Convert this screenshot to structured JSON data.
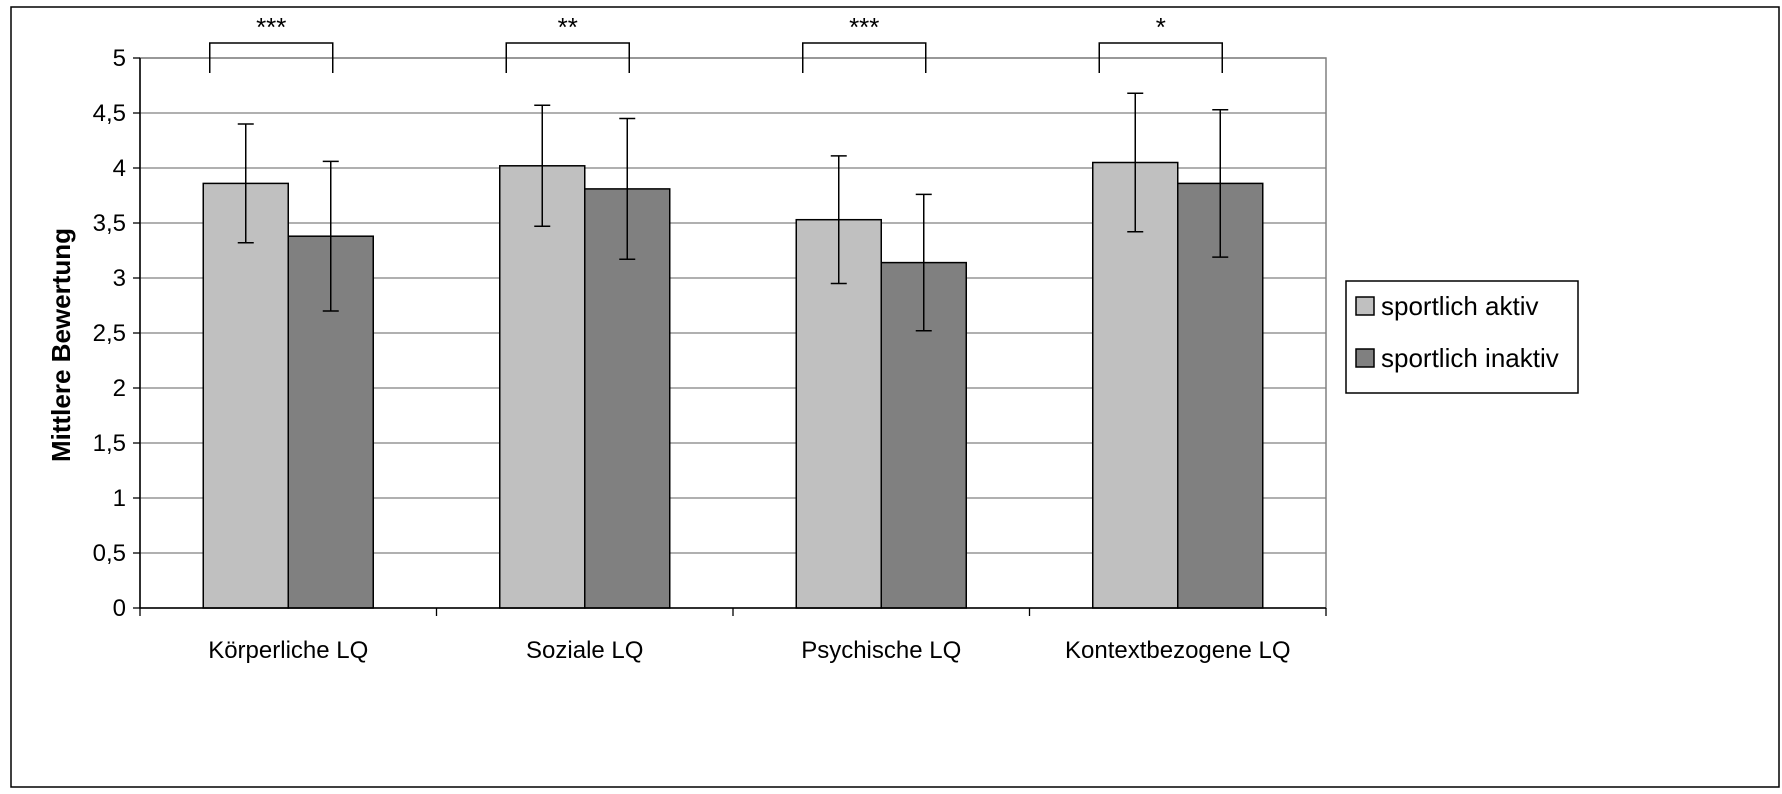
{
  "chart_data": {
    "type": "bar",
    "ylabel": "Mittlere Bewertung",
    "xlabel": "",
    "ylim": [
      0,
      5
    ],
    "yticks": [
      0,
      0.5,
      1,
      1.5,
      2,
      2.5,
      3,
      3.5,
      4,
      4.5,
      5
    ],
    "ytick_labels": [
      "0",
      "0,5",
      "1",
      "1,5",
      "2",
      "2,5",
      "3",
      "3,5",
      "4",
      "4,5",
      "5"
    ],
    "grid": "horizontal",
    "legend_position": "right",
    "categories": [
      "Körperliche LQ",
      "Soziale LQ",
      "Psychische LQ",
      "Kontextbezogene LQ"
    ],
    "series": [
      {
        "name": "sportlich aktiv",
        "color": "#c0c0c0",
        "values": [
          3.86,
          4.02,
          3.53,
          4.05
        ],
        "error": [
          0.54,
          0.55,
          0.58,
          0.63
        ]
      },
      {
        "name": "sportlich inaktiv",
        "color": "#808080",
        "values": [
          3.38,
          3.81,
          3.14,
          3.86
        ],
        "error": [
          0.68,
          0.64,
          0.62,
          0.67
        ]
      }
    ],
    "significance": [
      "***",
      "**",
      "***",
      "*"
    ]
  }
}
